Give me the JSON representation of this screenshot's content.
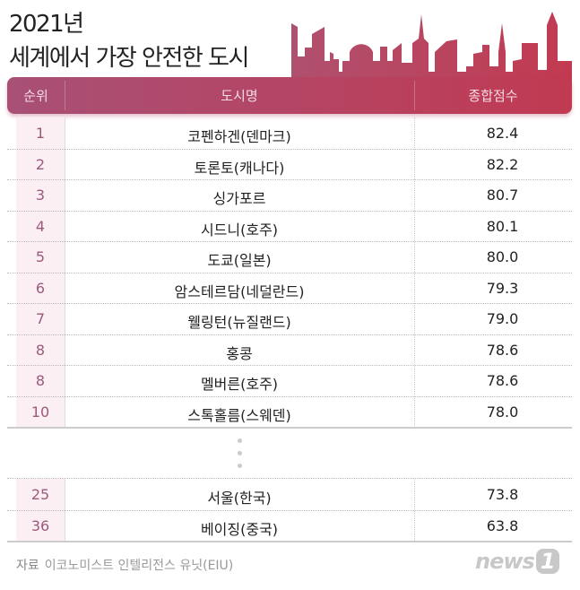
{
  "title": {
    "year": "2021년",
    "main": "세계에서 가장 안전한 도시"
  },
  "chart_data": {
    "type": "table",
    "title": "2021년 세계에서 가장 안전한 도시",
    "columns": [
      "순위",
      "도시명",
      "종합점수"
    ],
    "rows": [
      {
        "rank": "1",
        "city": "코펜하겐(덴마크)",
        "score": "82.4"
      },
      {
        "rank": "2",
        "city": "토론토(캐나다)",
        "score": "82.2"
      },
      {
        "rank": "3",
        "city": "싱가포르",
        "score": "80.7"
      },
      {
        "rank": "4",
        "city": "시드니(호주)",
        "score": "80.1"
      },
      {
        "rank": "5",
        "city": "도쿄(일본)",
        "score": "80.0"
      },
      {
        "rank": "6",
        "city": "암스테르담(네덜란드)",
        "score": "79.3"
      },
      {
        "rank": "7",
        "city": "웰링턴(뉴질랜드)",
        "score": "79.0"
      },
      {
        "rank": "8",
        "city": "홍콩",
        "score": "78.6"
      },
      {
        "rank": "8",
        "city": "멜버른(호주)",
        "score": "78.6"
      },
      {
        "rank": "10",
        "city": "스톡홀름(스웨덴)",
        "score": "78.0"
      }
    ],
    "extra_rows": [
      {
        "rank": "25",
        "city": "서울(한국)",
        "score": "73.8"
      },
      {
        "rank": "36",
        "city": "베이징(중국)",
        "score": "63.8"
      }
    ]
  },
  "footer": {
    "source_label": "자료",
    "source": "이코노미스트 인텔리전스 유닛(EIU)",
    "logo": "news",
    "logo_num": "1"
  },
  "colors": {
    "accent_start": "#a85076",
    "accent_end": "#c03a52",
    "rank_text": "#9b5a7b"
  }
}
